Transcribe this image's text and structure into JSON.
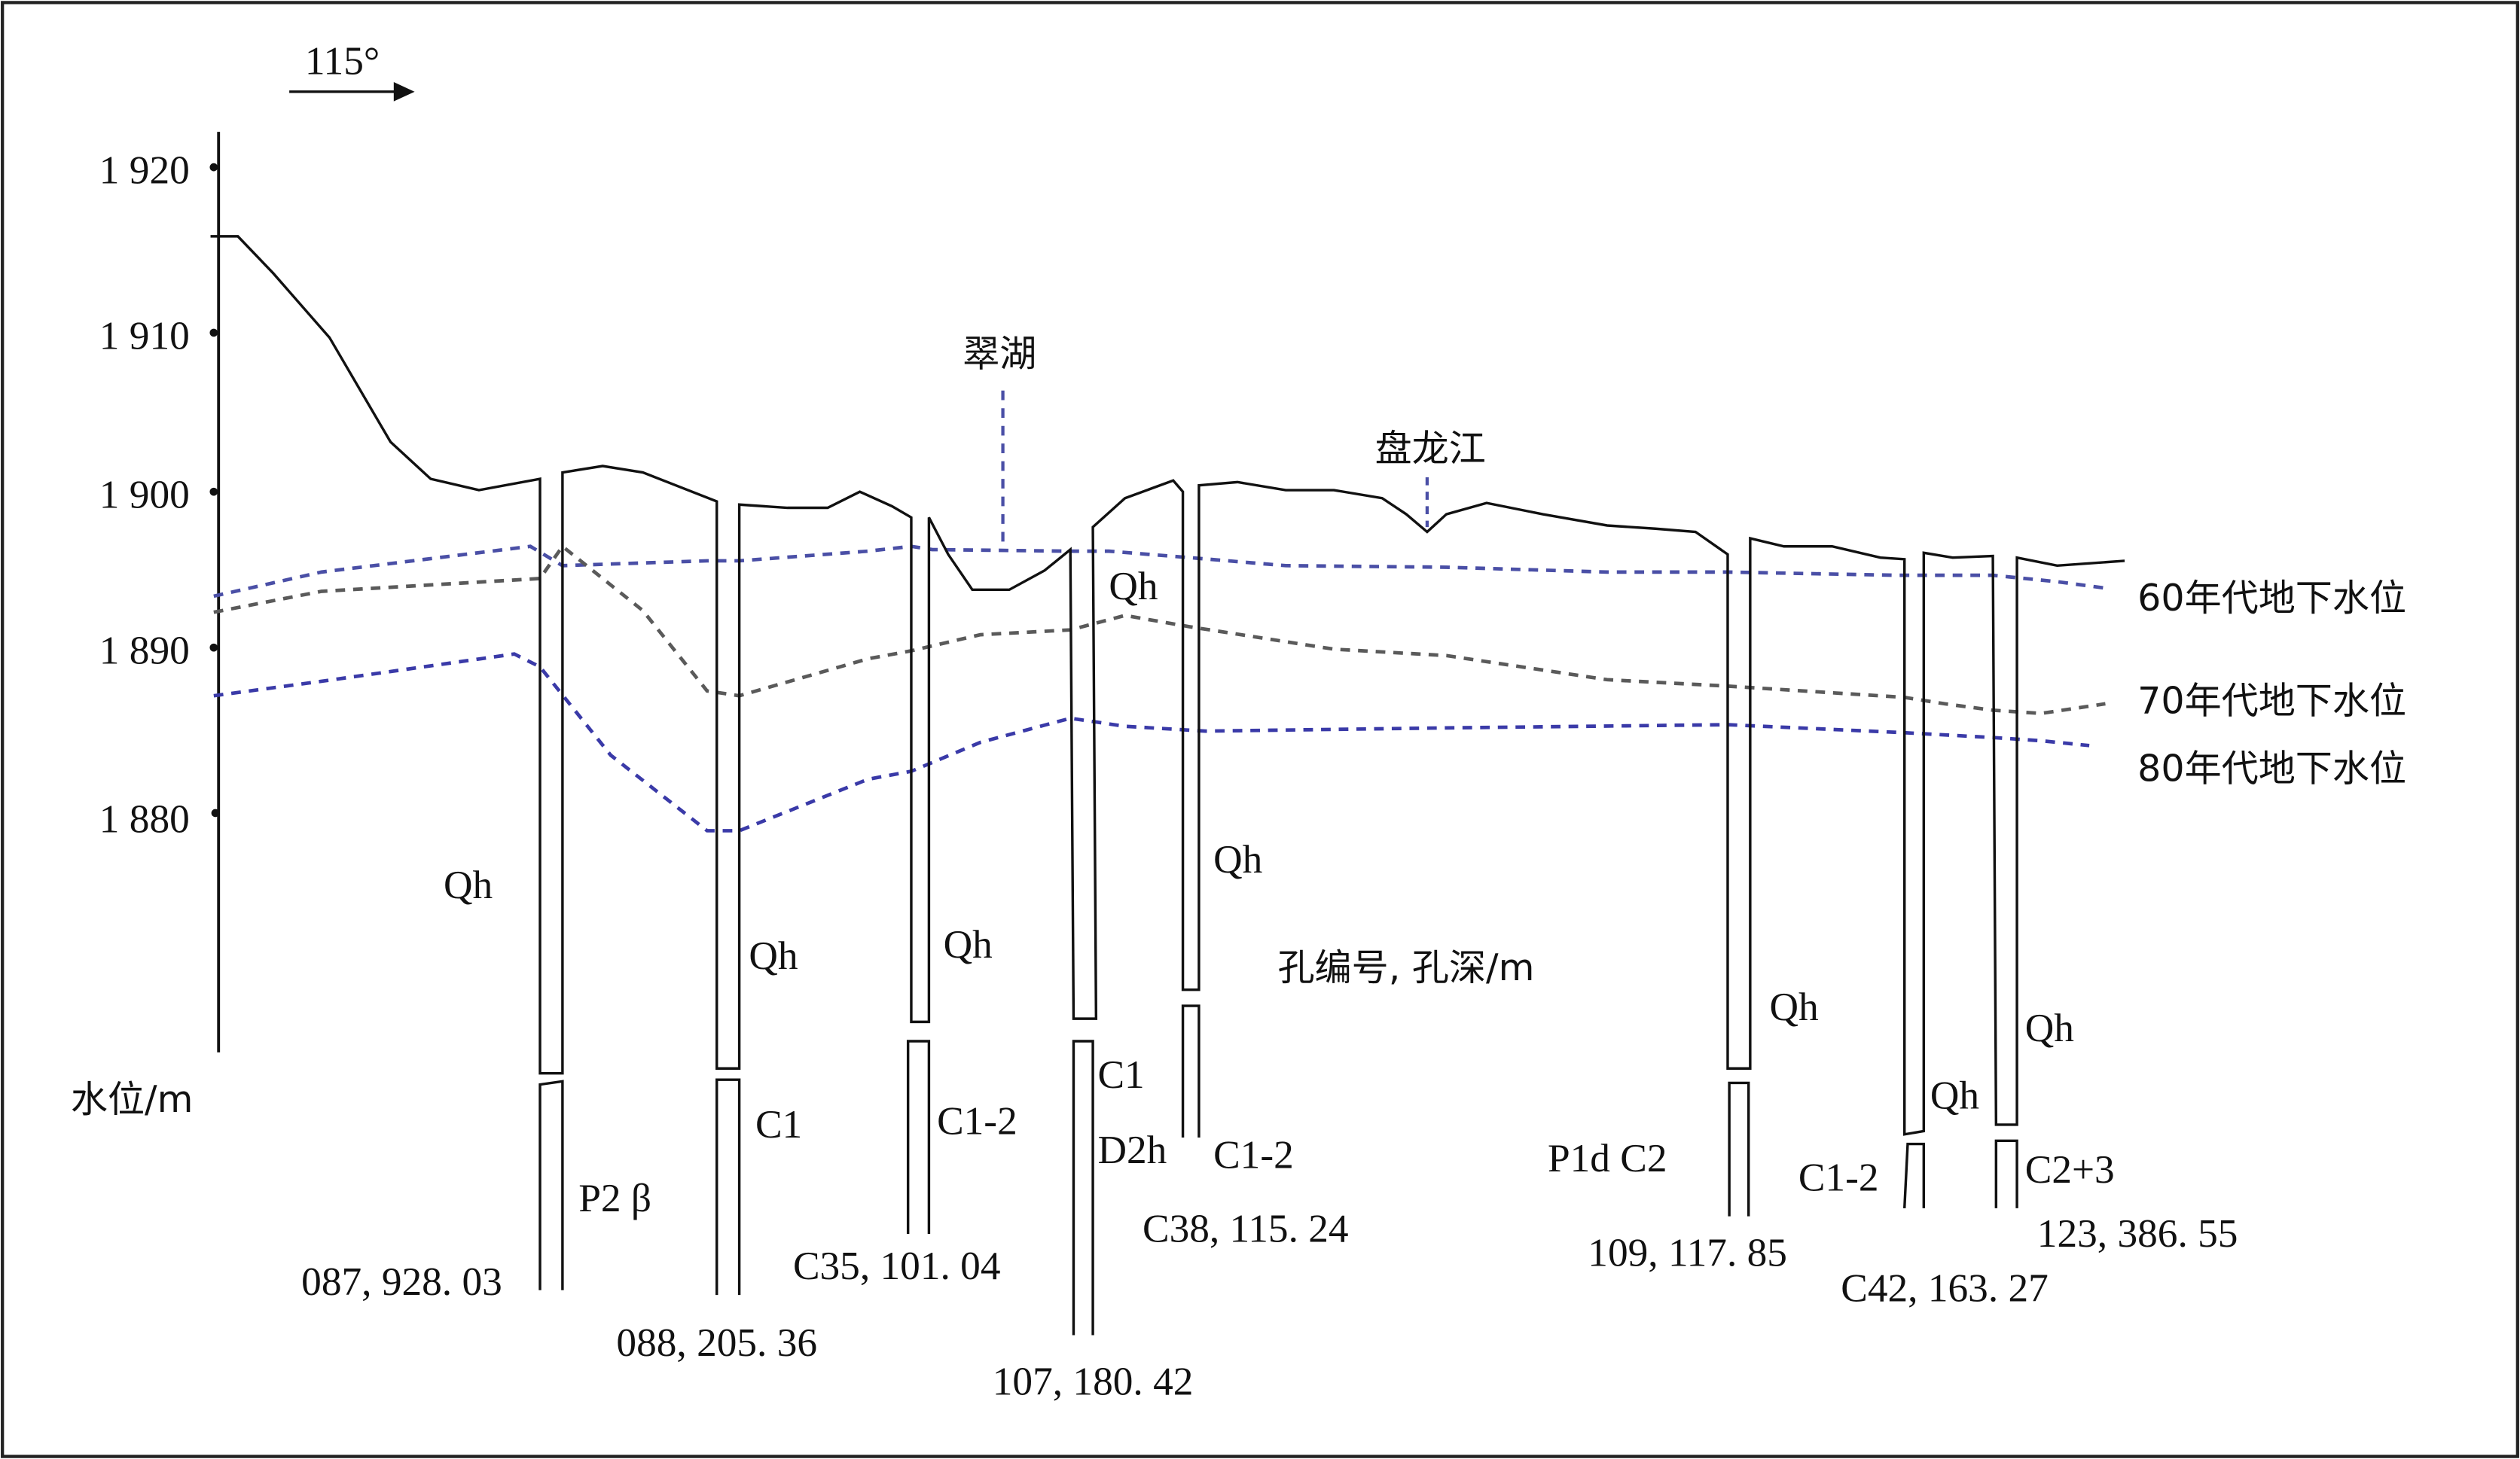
{
  "direction": "115°",
  "axis": {
    "title": "水位/m",
    "ticks": [
      "1 920",
      "1 910",
      "1 900",
      "1 890",
      "1 880"
    ]
  },
  "places": [
    "翠湖",
    "盘龙江"
  ],
  "legend": [
    "60年代地下水位",
    "70年代地下水位",
    "80年代地下水位"
  ],
  "note": "孔编号, 孔深/m",
  "boreholes": [
    {
      "strata": [
        "Qh",
        "P2 β"
      ],
      "id": "087, 928. 03"
    },
    {
      "strata": [
        "Qh",
        "C1"
      ],
      "id": "088, 205. 36"
    },
    {
      "strata": [
        "Qh",
        "C1-2"
      ],
      "id": "C35, 101. 04"
    },
    {
      "strata": [
        "Qh",
        "C1",
        "D2h"
      ],
      "id": "107, 180. 42"
    },
    {
      "strata": [
        "Qh",
        "C1-2"
      ],
      "id": "C38, 115. 24"
    },
    {
      "strata": [
        "Qh",
        "P1d C2"
      ],
      "id": "109, 117. 85"
    },
    {
      "strata": [
        "Qh",
        "C1-2"
      ],
      "id": "C42, 163. 27"
    },
    {
      "strata": [
        "Qh",
        "C2+3"
      ],
      "id": "123, 386. 55"
    }
  ]
}
